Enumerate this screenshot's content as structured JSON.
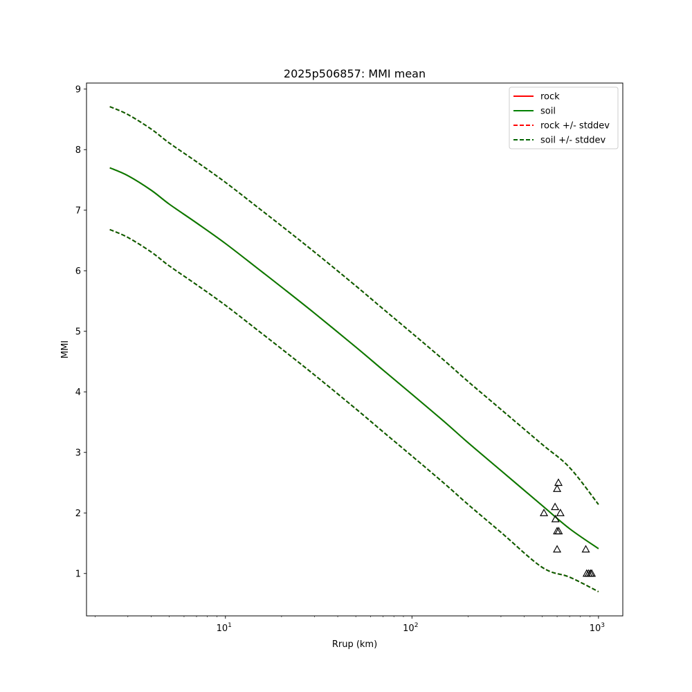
{
  "chart_data": {
    "type": "line",
    "title": "2025p506857: MMI mean",
    "xlabel": "Rrup (km)",
    "ylabel": "MMI",
    "xscale": "log",
    "xlim": [
      1.8,
      1350
    ],
    "ylim": [
      0.3,
      9.1
    ],
    "grid": false,
    "legend_placement": "top-right",
    "x_ticks": [
      {
        "value": 10,
        "base": "10",
        "exp": "1"
      },
      {
        "value": 100,
        "base": "10",
        "exp": "2"
      },
      {
        "value": 1000,
        "base": "10",
        "exp": "3"
      }
    ],
    "y_ticks": [
      1,
      2,
      3,
      4,
      5,
      6,
      7,
      8,
      9
    ],
    "series": [
      {
        "name": "rock",
        "style": "solid",
        "color": "#ff0000",
        "x": [
          2.4,
          3,
          4,
          5,
          7,
          10,
          15,
          20,
          30,
          50,
          70,
          100,
          150,
          200,
          300,
          500,
          700,
          1000
        ],
        "y": [
          7.7,
          7.57,
          7.33,
          7.1,
          6.79,
          6.45,
          6.03,
          5.73,
          5.3,
          4.74,
          4.36,
          3.96,
          3.5,
          3.16,
          2.7,
          2.12,
          1.74,
          1.41
        ]
      },
      {
        "name": "soil",
        "style": "solid",
        "color": "#008000",
        "x": [
          2.4,
          3,
          4,
          5,
          7,
          10,
          15,
          20,
          30,
          50,
          70,
          100,
          150,
          200,
          300,
          500,
          700,
          1000
        ],
        "y": [
          7.7,
          7.57,
          7.33,
          7.1,
          6.79,
          6.45,
          6.03,
          5.73,
          5.3,
          4.74,
          4.36,
          3.96,
          3.5,
          3.16,
          2.7,
          2.12,
          1.74,
          1.41
        ]
      },
      {
        "name": "rock +/- stddev",
        "style": "dashed",
        "color": "#ff0000",
        "x": [
          2.4,
          3,
          4,
          5,
          7,
          10,
          15,
          20,
          30,
          50,
          70,
          100,
          150,
          200,
          300,
          500,
          700,
          1000
        ],
        "y_upper": [
          8.71,
          8.58,
          8.34,
          8.11,
          7.8,
          7.46,
          7.04,
          6.74,
          6.31,
          5.75,
          5.37,
          4.97,
          4.51,
          4.17,
          3.71,
          3.13,
          2.75,
          2.14
        ],
        "y_lower": [
          6.68,
          6.55,
          6.31,
          6.08,
          5.77,
          5.43,
          5.01,
          4.71,
          4.28,
          3.72,
          3.34,
          2.94,
          2.48,
          2.14,
          1.68,
          1.1,
          0.94,
          0.7
        ]
      },
      {
        "name": "soil +/- stddev",
        "style": "dashed",
        "color": "#006400",
        "x": [
          2.4,
          3,
          4,
          5,
          7,
          10,
          15,
          20,
          30,
          50,
          70,
          100,
          150,
          200,
          300,
          500,
          700,
          1000
        ],
        "y_upper": [
          8.71,
          8.58,
          8.34,
          8.11,
          7.8,
          7.46,
          7.04,
          6.74,
          6.31,
          5.75,
          5.37,
          4.97,
          4.51,
          4.17,
          3.71,
          3.13,
          2.75,
          2.14
        ],
        "y_lower": [
          6.68,
          6.55,
          6.31,
          6.08,
          5.77,
          5.43,
          5.01,
          4.71,
          4.28,
          3.72,
          3.34,
          2.94,
          2.48,
          2.14,
          1.68,
          1.1,
          0.94,
          0.7
        ]
      }
    ],
    "observations": {
      "marker": "triangle-open",
      "color": "#000000",
      "points": [
        {
          "x": 510,
          "y": 2.0
        },
        {
          "x": 585,
          "y": 2.1
        },
        {
          "x": 588,
          "y": 1.9
        },
        {
          "x": 600,
          "y": 2.4
        },
        {
          "x": 610,
          "y": 2.5
        },
        {
          "x": 625,
          "y": 2.0
        },
        {
          "x": 600,
          "y": 1.7
        },
        {
          "x": 612,
          "y": 1.7
        },
        {
          "x": 600,
          "y": 1.4
        },
        {
          "x": 855,
          "y": 1.4
        },
        {
          "x": 865,
          "y": 1.0
        },
        {
          "x": 885,
          "y": 1.0
        },
        {
          "x": 905,
          "y": 1.0
        },
        {
          "x": 920,
          "y": 1.0
        }
      ]
    }
  }
}
